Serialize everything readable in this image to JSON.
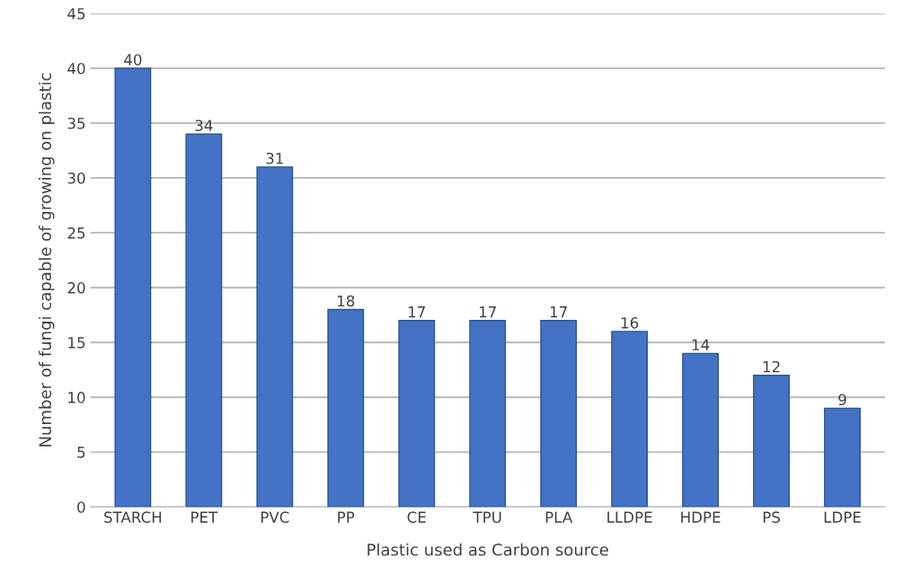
{
  "chart_data": {
    "type": "bar",
    "xlabel": "Plastic used as Carbon source",
    "ylabel": "Number of fungi capable of growing on plastic",
    "categories": [
      "STARCH",
      "PET",
      "PVC",
      "PP",
      "CE",
      "TPU",
      "PLA",
      "LLDPE",
      "HDPE",
      "PS",
      "LDPE"
    ],
    "values": [
      40,
      34,
      31,
      18,
      17,
      17,
      17,
      16,
      14,
      12,
      9
    ],
    "color": "#4472c4",
    "ylim": [
      0,
      45
    ],
    "yticks": [
      0,
      5,
      10,
      15,
      20,
      25,
      30,
      35,
      40,
      45
    ],
    "grid": "y",
    "data_labels": true
  }
}
